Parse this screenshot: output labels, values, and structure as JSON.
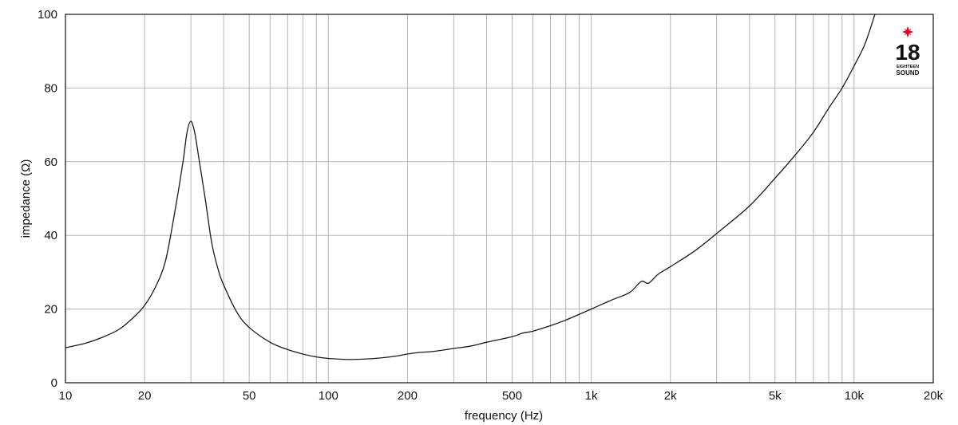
{
  "chart_data": {
    "type": "line",
    "xscale": "log",
    "xlim": [
      10,
      20000
    ],
    "ylim": [
      0,
      100
    ],
    "grid": true,
    "xlabel": "frequency (Hz)",
    "ylabel": "impedance (Ω)",
    "x_ticks": [
      {
        "value": 10,
        "label": "10"
      },
      {
        "value": 20,
        "label": "20"
      },
      {
        "value": 50,
        "label": "50"
      },
      {
        "value": 100,
        "label": "100"
      },
      {
        "value": 200,
        "label": "200"
      },
      {
        "value": 500,
        "label": "500"
      },
      {
        "value": 1000,
        "label": "1k"
      },
      {
        "value": 2000,
        "label": "2k"
      },
      {
        "value": 5000,
        "label": "5k"
      },
      {
        "value": 10000,
        "label": "10k"
      },
      {
        "value": 20000,
        "label": "20k"
      }
    ],
    "y_ticks": [
      {
        "value": 0,
        "label": "0"
      },
      {
        "value": 20,
        "label": "20"
      },
      {
        "value": 40,
        "label": "40"
      },
      {
        "value": 60,
        "label": "60"
      },
      {
        "value": 80,
        "label": "80"
      },
      {
        "value": 100,
        "label": "100"
      }
    ],
    "series": [
      {
        "color": "#1a1a1a",
        "points": [
          [
            10,
            9.5
          ],
          [
            12,
            10.8
          ],
          [
            14,
            12.5
          ],
          [
            16,
            14.5
          ],
          [
            18,
            17.5
          ],
          [
            20,
            21.0
          ],
          [
            22,
            26.0
          ],
          [
            24,
            33.0
          ],
          [
            26,
            46.0
          ],
          [
            28,
            60.0
          ],
          [
            29,
            68.0
          ],
          [
            30,
            71.0
          ],
          [
            31,
            68.0
          ],
          [
            32,
            62.0
          ],
          [
            34,
            50.0
          ],
          [
            36,
            38.0
          ],
          [
            38,
            31.0
          ],
          [
            40,
            26.5
          ],
          [
            45,
            19.0
          ],
          [
            50,
            15.0
          ],
          [
            60,
            11.0
          ],
          [
            70,
            9.0
          ],
          [
            80,
            7.8
          ],
          [
            90,
            7.0
          ],
          [
            100,
            6.6
          ],
          [
            120,
            6.3
          ],
          [
            150,
            6.6
          ],
          [
            180,
            7.2
          ],
          [
            200,
            7.8
          ],
          [
            220,
            8.2
          ],
          [
            250,
            8.5
          ],
          [
            300,
            9.3
          ],
          [
            350,
            10.0
          ],
          [
            400,
            11.0
          ],
          [
            500,
            12.5
          ],
          [
            550,
            13.5
          ],
          [
            600,
            14.0
          ],
          [
            700,
            15.5
          ],
          [
            800,
            17.0
          ],
          [
            1000,
            20.0
          ],
          [
            1200,
            22.5
          ],
          [
            1400,
            24.5
          ],
          [
            1550,
            27.5
          ],
          [
            1650,
            27.0
          ],
          [
            1800,
            29.5
          ],
          [
            2000,
            31.5
          ],
          [
            2500,
            36.0
          ],
          [
            3000,
            40.5
          ],
          [
            4000,
            48.0
          ],
          [
            5000,
            55.5
          ],
          [
            6000,
            62.0
          ],
          [
            7000,
            68.0
          ],
          [
            8000,
            74.5
          ],
          [
            9000,
            80.0
          ],
          [
            10000,
            86.0
          ],
          [
            11000,
            92.0
          ],
          [
            12000,
            100.0
          ]
        ]
      }
    ]
  },
  "logo": {
    "number": "18",
    "line1": "EIGHTEEN",
    "line2": "SOUND",
    "star_color": "#e3001b"
  }
}
